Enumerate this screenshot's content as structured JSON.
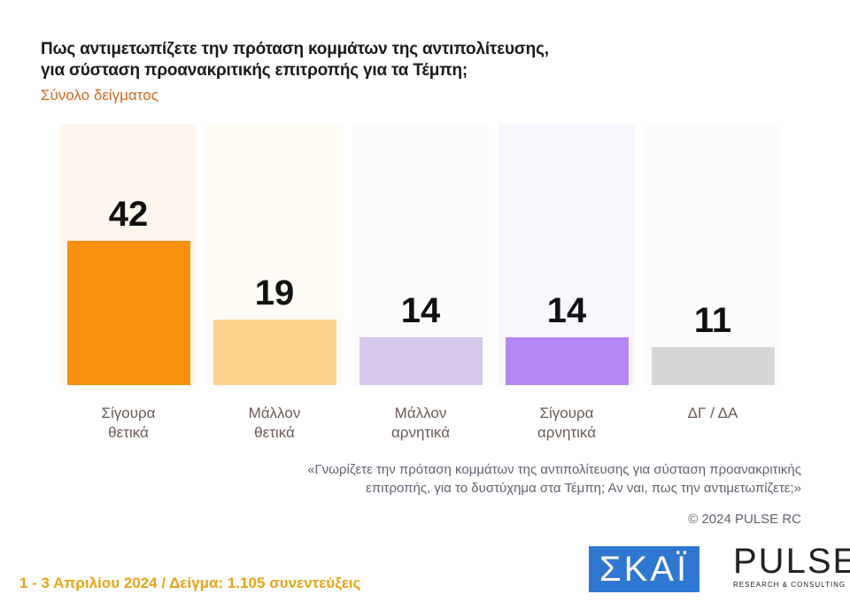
{
  "chart_data": {
    "type": "bar",
    "title": "Πως αντιμετωπίζετε την πρόταση κομμάτων της αντιπολίτευσης,\nγια σύσταση προανακριτικής επιτροπής για τα Τέμπη;",
    "subtitle": "Σύνολο δείγματος",
    "categories": [
      "Σίγουρα\nθετικά",
      "Μάλλον\nθετικά",
      "Μάλλον\nαρνητικά",
      "Σίγουρα\nαρνητικά",
      "ΔΓ / ΔΑ"
    ],
    "values": [
      42,
      19,
      14,
      14,
      11
    ],
    "colors": [
      "#f7900a",
      "#fdd38f",
      "#d5c8ec",
      "#b388f6",
      "#d6d6d6"
    ],
    "note": "«Γνωρίζετε την πρόταση κομμάτων της αντιπολίτευσης για σύσταση προανακριτικής\nεπιτροπής, για το δυστύχημα στα Τέμπη; Αν ναι, πως την αντιμετωπίζετε;»",
    "copyright": "© 2024 PULSE RC",
    "footer": "1 - 3  Απριλίου 2024  /  Δείγμα:  1.105 συνεντεύξεις",
    "logo_left": "ΣΚΑΪ",
    "logo_right": "PULSE",
    "logo_right_sub": "RESEARCH & CONSULTING"
  }
}
